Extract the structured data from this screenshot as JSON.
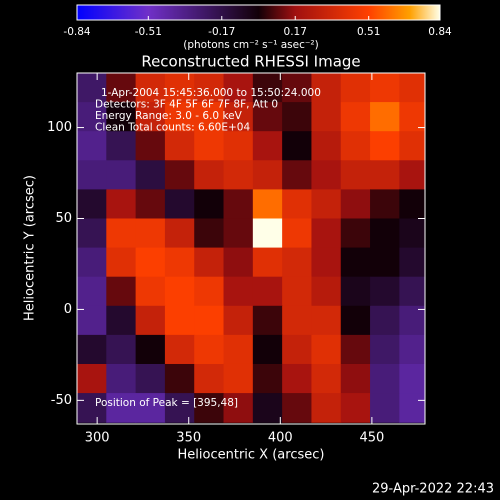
{
  "chart_data": {
    "type": "heatmap",
    "title": "Reconstructed RHESSI Image",
    "colorbar_label": "(photons cm⁻² s⁻¹ asec⁻²)",
    "xlabel": "Heliocentric X (arcsec)",
    "ylabel": "Heliocentric Y (arcsec)",
    "annotations": [
      "1-Apr-2004 15:45:36.000 to 15:50:24.000",
      "Detectors: 3F 4F 5F 6F 7F 8F, Att 0",
      "Energy Range: 3.0 - 6.0 keV",
      "Clean    Total counts: 6.60E+04"
    ],
    "peak_label": "Position of Peak = [395,48]",
    "xlim": [
      289,
      479
    ],
    "ylim": [
      -63,
      130
    ],
    "xticks": [
      300,
      350,
      400,
      450
    ],
    "yticks": [
      -50,
      0,
      50,
      100
    ],
    "clim": [
      -0.84,
      0.84
    ],
    "cticks": [
      -0.84,
      -0.51,
      -0.17,
      0.17,
      0.51,
      0.84
    ],
    "colorscale": [
      [
        -0.84,
        "#0000ff"
      ],
      [
        -0.51,
        "#7030c8"
      ],
      [
        -0.17,
        "#301048"
      ],
      [
        0,
        "#120008"
      ],
      [
        0.17,
        "#a01010"
      ],
      [
        0.51,
        "#ff4000"
      ],
      [
        0.7,
        "#ffa000"
      ],
      [
        0.84,
        "#ffffe8"
      ]
    ],
    "x": [
      297,
      313,
      329,
      345,
      361,
      377,
      393,
      409,
      425,
      441,
      457,
      473
    ],
    "y": [
      122,
      106,
      90,
      74,
      58,
      42,
      26,
      10,
      -6,
      -22,
      -38,
      -54
    ],
    "z": [
      [
        -0.25,
        0.1,
        0.35,
        0.4,
        0.35,
        0.2,
        0.05,
        0.1,
        0.3,
        0.4,
        0.45,
        0.4
      ],
      [
        -0.3,
        0.0,
        0.3,
        0.45,
        0.45,
        0.3,
        0.1,
        0.05,
        0.3,
        0.45,
        0.6,
        0.45
      ],
      [
        -0.35,
        -0.2,
        0.1,
        0.35,
        0.45,
        0.4,
        0.2,
        0.0,
        0.25,
        0.4,
        0.5,
        0.4
      ],
      [
        -0.3,
        -0.3,
        -0.15,
        0.1,
        0.3,
        0.35,
        0.3,
        0.1,
        0.2,
        0.3,
        0.3,
        0.2
      ],
      [
        -0.1,
        0.2,
        0.1,
        -0.1,
        0.0,
        0.1,
        0.6,
        0.4,
        0.3,
        0.15,
        0.05,
        0.0
      ],
      [
        -0.2,
        0.45,
        0.45,
        0.3,
        0.05,
        0.1,
        0.84,
        0.45,
        0.2,
        0.05,
        0.0,
        -0.05
      ],
      [
        -0.3,
        0.4,
        0.5,
        0.45,
        0.3,
        0.15,
        0.4,
        0.35,
        0.2,
        0.0,
        0.0,
        -0.1
      ],
      [
        -0.35,
        0.1,
        0.45,
        0.5,
        0.45,
        0.2,
        0.2,
        0.35,
        0.25,
        -0.05,
        -0.1,
        -0.2
      ],
      [
        -0.35,
        -0.1,
        0.3,
        0.5,
        0.5,
        0.3,
        0.05,
        0.35,
        0.35,
        0.0,
        -0.2,
        -0.3
      ],
      [
        -0.1,
        -0.2,
        0.0,
        0.35,
        0.45,
        0.4,
        0.0,
        0.3,
        0.4,
        0.1,
        -0.25,
        -0.35
      ],
      [
        0.2,
        -0.3,
        -0.2,
        0.05,
        0.35,
        0.4,
        0.05,
        0.2,
        0.35,
        0.15,
        -0.3,
        -0.4
      ],
      [
        -0.2,
        -0.4,
        -0.4,
        -0.2,
        0.05,
        0.15,
        -0.05,
        0.1,
        0.3,
        0.2,
        -0.3,
        -0.4
      ]
    ]
  },
  "timestamp": "29-Apr-2022 22:43"
}
